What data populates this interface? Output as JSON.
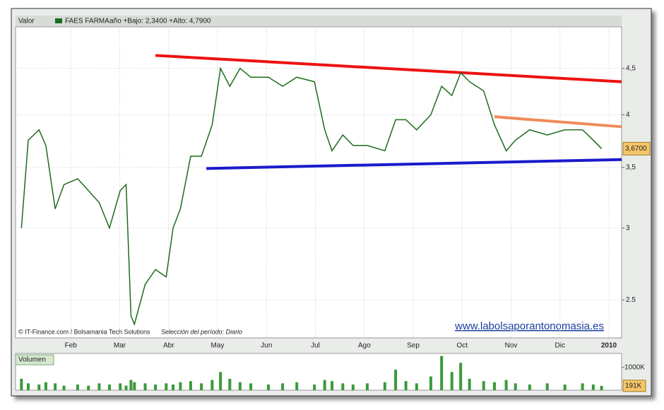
{
  "chart_data": [
    {
      "type": "line",
      "header": [
        "Valor",
        "FAES FARMA",
        "año +Bajo: 2,3400 +Alto: 4,7900"
      ],
      "credits": "© IT-Finance.com / Bolsamania Tech Solutions",
      "period": "Selección del período: Diario",
      "watermark": "www.labolsaporantonomasia.es",
      "log_scale": true,
      "grid": true,
      "xlim": [
        -0.13,
        12.26
      ],
      "xticks": [
        {
          "value": 1,
          "label": "Feb"
        },
        {
          "value": 2,
          "label": "Mar"
        },
        {
          "value": 3,
          "label": "Abr"
        },
        {
          "value": 4,
          "label": "May"
        },
        {
          "value": 5,
          "label": "Jun"
        },
        {
          "value": 6,
          "label": "Jul"
        },
        {
          "value": 7,
          "label": "Ago"
        },
        {
          "value": 8,
          "label": "Sep"
        },
        {
          "value": 9,
          "label": "Oct"
        },
        {
          "value": 10,
          "label": "Nov"
        },
        {
          "value": 11,
          "label": "Dic"
        },
        {
          "value": 12,
          "label": "2010"
        }
      ],
      "ylim": [
        2.27,
        5.0
      ],
      "yticks": [
        2.5,
        3,
        {
          "value": 3.5,
          "label": "3,5"
        },
        4,
        {
          "value": 4.5,
          "label": "4,5"
        }
      ],
      "last_label": {
        "value": 3.67,
        "label": "3,6700"
      },
      "series": [
        {
          "color": "#1d6b1d",
          "x": [
            -0.01,
            0.13,
            0.35,
            0.49,
            0.68,
            0.86,
            1.14,
            1.36,
            1.58,
            1.79,
            2.01,
            2.13,
            2.23,
            2.3,
            2.52,
            2.73,
            2.95,
            3.09,
            3.24,
            3.45,
            3.67,
            3.89,
            4.06,
            4.25,
            4.46,
            4.68,
            5.04,
            5.33,
            5.62,
            5.98,
            6.19,
            6.34,
            6.56,
            6.77,
            7.06,
            7.42,
            7.64,
            7.85,
            8.07,
            8.36,
            8.58,
            8.79,
            8.97,
            9.15,
            9.44,
            9.66,
            9.9,
            10.09,
            10.38,
            10.74,
            11.1,
            11.46,
            11.68,
            11.85
          ],
          "values": [
            3.0,
            3.75,
            3.85,
            3.7,
            3.15,
            3.35,
            3.4,
            3.3,
            3.2,
            3.0,
            3.3,
            3.35,
            2.4,
            2.35,
            2.6,
            2.7,
            2.65,
            3.0,
            3.15,
            3.6,
            3.6,
            3.9,
            4.5,
            4.3,
            4.5,
            4.4,
            4.4,
            4.3,
            4.4,
            4.35,
            3.85,
            3.65,
            3.8,
            3.7,
            3.7,
            3.65,
            3.95,
            3.95,
            3.85,
            4.0,
            4.3,
            4.2,
            4.45,
            4.35,
            4.25,
            3.9,
            3.65,
            3.75,
            3.85,
            3.8,
            3.85,
            3.85,
            3.75,
            3.67
          ]
        }
      ],
      "trend_lines": [
        {
          "color": "#ee1111",
          "x": [
            2.73,
            12.26
          ],
          "values": [
            4.65,
            4.35
          ]
        },
        {
          "color": "#1a1acc",
          "x": [
            3.77,
            12.26
          ],
          "values": [
            3.49,
            3.57
          ]
        },
        {
          "color": "#f08a5a",
          "x": [
            9.66,
            12.26
          ],
          "values": [
            3.98,
            3.88
          ]
        }
      ]
    },
    {
      "type": "bar",
      "title": "Volumen",
      "color": "#3a9a3a",
      "xlim": [
        -0.13,
        12.26
      ],
      "ylim": [
        0,
        1610000
      ],
      "yticks": [
        {
          "value": 1000000,
          "label": "1000K"
        }
      ],
      "last_label": {
        "value": 191000,
        "label": "191K"
      },
      "x": [
        -0.01,
        0.13,
        0.35,
        0.49,
        0.68,
        0.86,
        1.14,
        1.36,
        1.58,
        1.79,
        2.01,
        2.13,
        2.23,
        2.3,
        2.52,
        2.73,
        2.95,
        3.09,
        3.24,
        3.45,
        3.67,
        3.89,
        4.06,
        4.25,
        4.46,
        4.68,
        5.04,
        5.33,
        5.62,
        5.98,
        6.19,
        6.34,
        6.56,
        6.77,
        7.06,
        7.42,
        7.64,
        7.85,
        8.07,
        8.36,
        8.58,
        8.79,
        8.97,
        9.15,
        9.44,
        9.66,
        9.9,
        10.09,
        10.38,
        10.74,
        11.1,
        11.46,
        11.68,
        11.85
      ],
      "values": [
        500000,
        300000,
        250000,
        350000,
        300000,
        200000,
        250000,
        200000,
        300000,
        250000,
        300000,
        200000,
        450000,
        350000,
        300000,
        250000,
        300000,
        250000,
        350000,
        400000,
        300000,
        450000,
        800000,
        500000,
        350000,
        300000,
        250000,
        300000,
        350000,
        250000,
        450000,
        400000,
        300000,
        250000,
        300000,
        350000,
        900000,
        400000,
        300000,
        600000,
        1500000,
        800000,
        1200000,
        500000,
        400000,
        350000,
        450000,
        300000,
        250000,
        300000,
        250000,
        300000,
        250000,
        191000
      ]
    }
  ]
}
